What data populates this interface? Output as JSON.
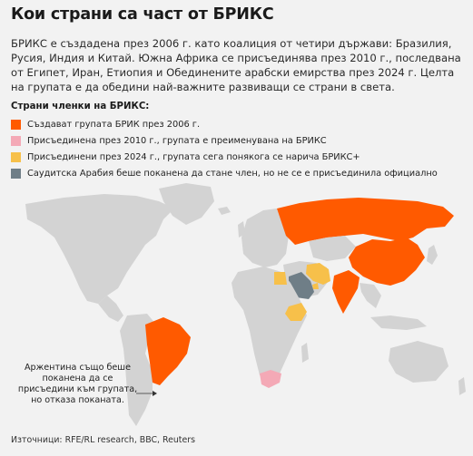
{
  "title": "Кои страни са част от БРИКС",
  "intro": "БРИКС е създадена през 2006 г. като коалиция от четири държави: Бразилия, Русия, Индия и Китай. Южна Африка се присъединява през 2010 г., последвана от Египет, Иран, Етиопия и Обединените арабски емирства през 2024 г. Целта на групата е да обедини най-важните развиващи се страни в света.",
  "legend": {
    "heading": "Страни членки на БРИКС:",
    "items": [
      {
        "label": "Създават групата БРИК през 2006 г.",
        "color": "#ff5a00"
      },
      {
        "label": "Присъединена през 2010 г., групата е преименувана на БРИКС",
        "color": "#f4a9b6"
      },
      {
        "label": "Присъединени през 2024 г., групата сега понякога се нарича БРИКС+",
        "color": "#f7c04a"
      },
      {
        "label": "Саудитска Арабия беше поканена да стане член, но не се е присъединила официално",
        "color": "#6f7e87"
      }
    ]
  },
  "colors": {
    "land": "#d3d3d3",
    "background": "#f2f2f2"
  },
  "annotation": "Аржентина също беше поканена да се присъедини към групата, но отказа поканата.",
  "sources": "Източници: RFE/RL research, BBC, Reuters"
}
